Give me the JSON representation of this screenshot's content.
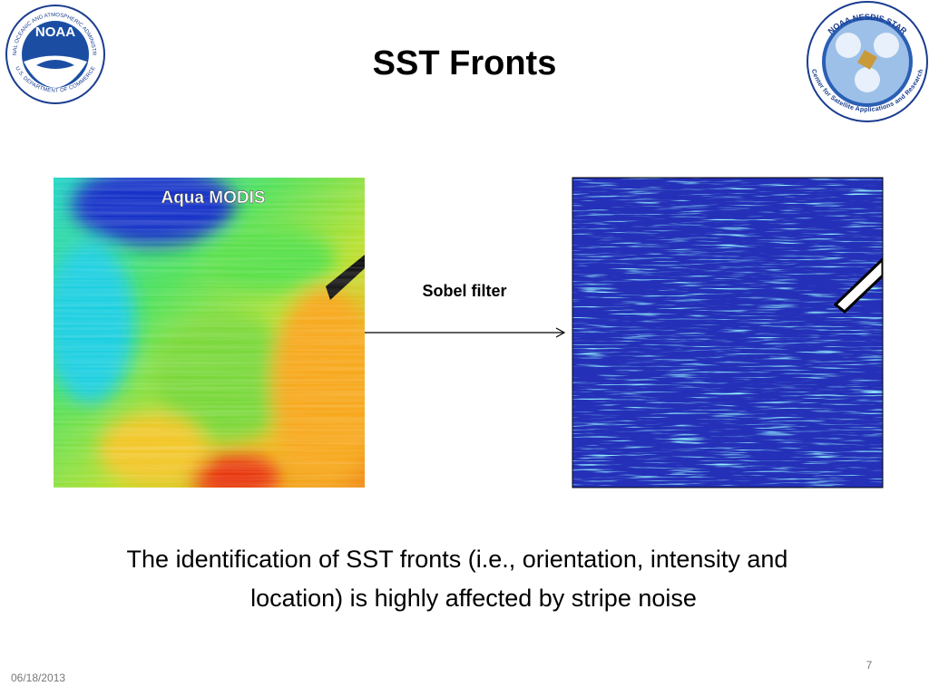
{
  "header": {
    "title": "SST Fronts"
  },
  "logos": {
    "noaa": {
      "label": "NOAA",
      "ring_top": "NATIONAL OCEANIC AND ATMOSPHERIC ADMINISTRATION",
      "ring_bottom": "U.S. DEPARTMENT OF COMMERCE"
    },
    "star": {
      "ring_top": "NOAA NESDIS STAR",
      "ring_bottom": "Center for Satellite Applications and Research"
    }
  },
  "figure": {
    "left_caption": "Aqua MODIS",
    "arrow_label": "Sobel filter"
  },
  "body": {
    "lines": [
      "The identification of SST fronts (i.e., orientation, intensity and",
      "location) is highly affected by stripe noise"
    ]
  },
  "footer": {
    "date": "06/18/2013",
    "page_number": 7
  }
}
